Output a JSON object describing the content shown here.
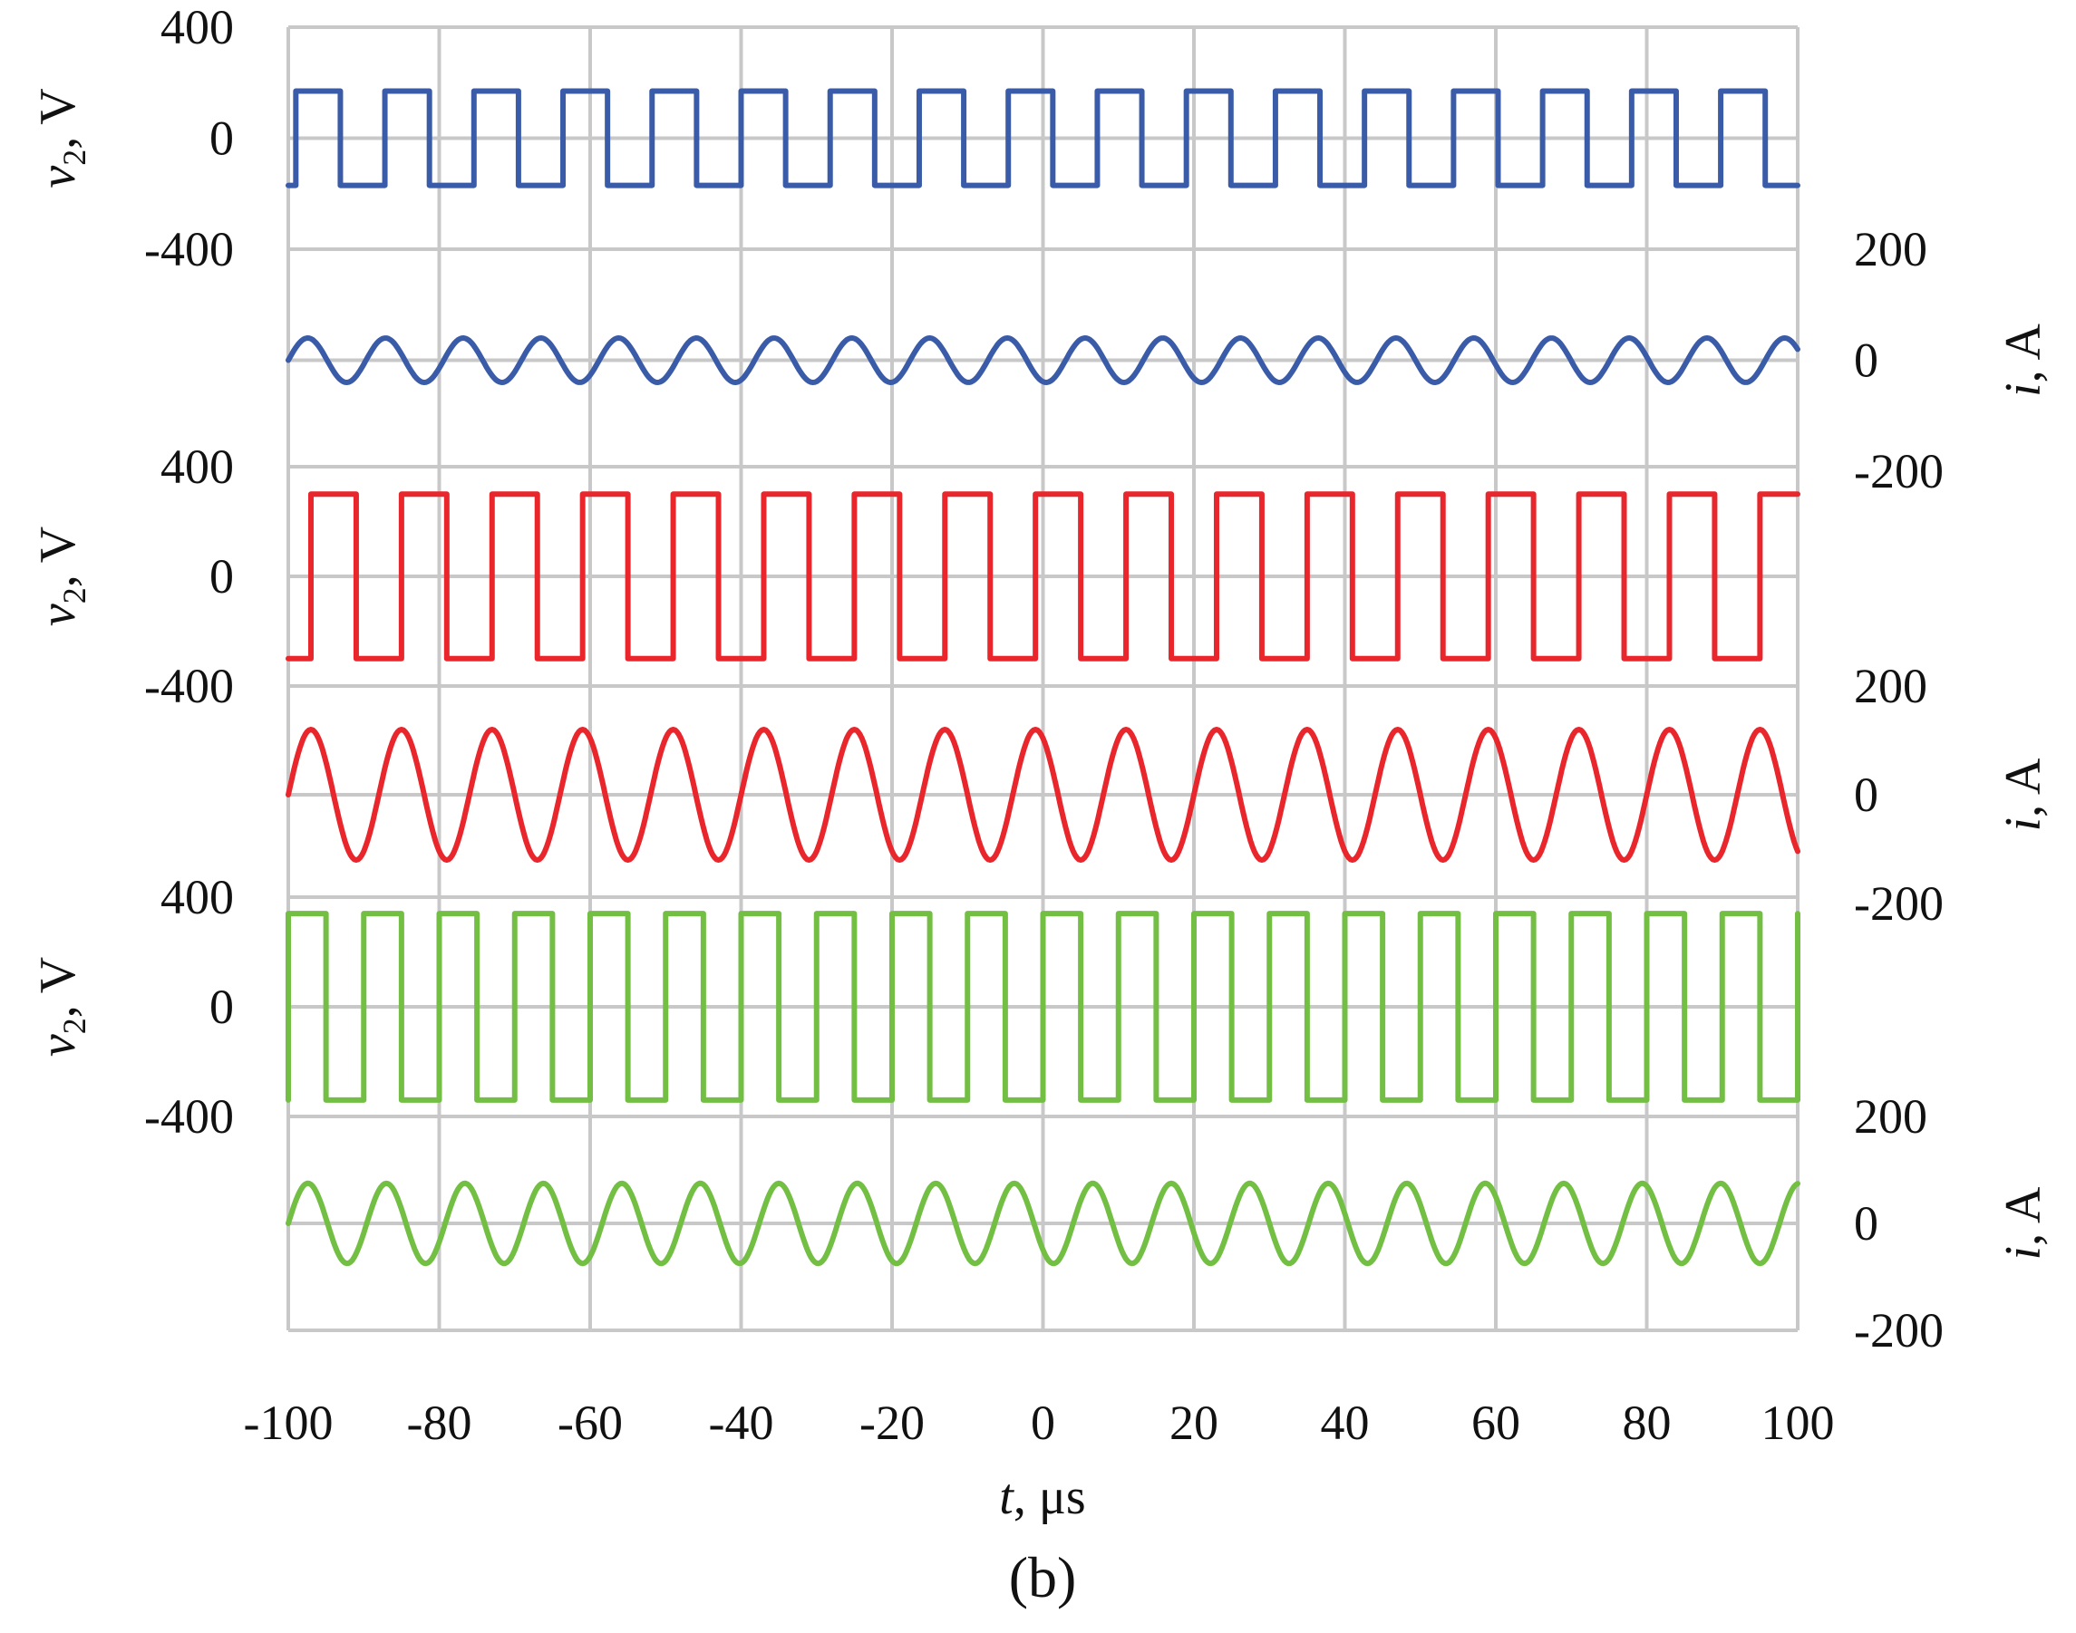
{
  "chart_data": {
    "type": "line",
    "caption": "(b)",
    "x": {
      "label_var": "t",
      "label_unit": ", μs",
      "range": [
        -100,
        100
      ],
      "ticks": [
        "-100",
        "-80",
        "-60",
        "-40",
        "-20",
        "0",
        "20",
        "40",
        "60",
        "80",
        "100"
      ]
    },
    "panels": [
      {
        "name": "blue",
        "color": "#3a5ca8",
        "voltage": {
          "label_var": "v",
          "label_sub": "2",
          "label_unit": ", V",
          "range": [
            -400,
            400
          ],
          "ticks": [
            "400",
            "0",
            "-400"
          ],
          "amplitude": 170,
          "period_us": 11.8,
          "phase_us": -99
        },
        "current": {
          "label_var": "i",
          "label_unit": ", A",
          "range": [
            -200,
            200
          ],
          "ticks": [
            "200",
            "0",
            "-200"
          ],
          "amplitude": 40,
          "period_us": 10.3,
          "phase_us": -100
        }
      },
      {
        "name": "red",
        "color": "#e8262b",
        "voltage": {
          "label_var": "v",
          "label_sub": "2",
          "label_unit": ", V",
          "range": [
            -400,
            400
          ],
          "ticks": [
            "400",
            "0",
            "-400"
          ],
          "amplitude": 300,
          "period_us": 12.0,
          "phase_us": -97
        },
        "current": {
          "label_var": "i",
          "label_unit": ", A",
          "range": [
            -200,
            200
          ],
          "ticks": [
            "200",
            "0",
            "-200"
          ],
          "amplitude": 120,
          "period_us": 12.0,
          "phase_us": -100
        }
      },
      {
        "name": "green",
        "color": "#72bf44",
        "voltage": {
          "label_var": "v",
          "label_sub": "2",
          "label_unit": ", V",
          "range": [
            -400,
            400
          ],
          "ticks": [
            "400",
            "0",
            "-400"
          ],
          "amplitude": 340,
          "period_us": 10.0,
          "phase_us": -100
        },
        "current": {
          "label_var": "i",
          "label_unit": ", A",
          "range": [
            -200,
            200
          ],
          "ticks": [
            "200",
            "0",
            "-200"
          ],
          "amplitude": 75,
          "period_us": 10.4,
          "phase_us": -100
        }
      }
    ]
  }
}
